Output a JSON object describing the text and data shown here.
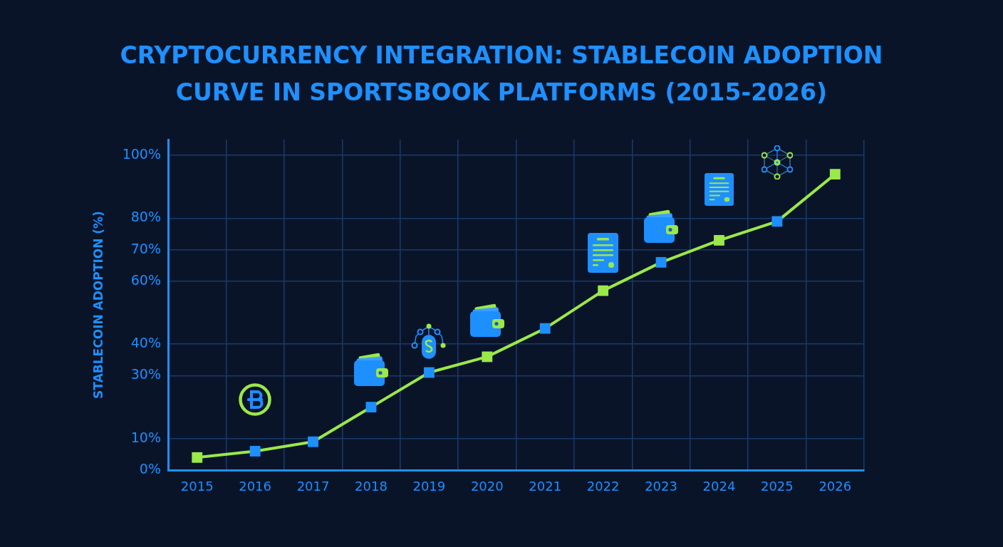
{
  "chart_data": {
    "type": "line",
    "title": "CRYPTOCURRENCY INTEGRATION: STABLECOIN ADOPTION CURVE IN SPORTSBOOK PLATFORMS (2015-2026)",
    "ylabel": "STABLECOIN ADOPTION (%)",
    "categories": [
      "2015",
      "2016",
      "2017",
      "2018",
      "2019",
      "2020",
      "2021",
      "2022",
      "2023",
      "2024",
      "2025",
      "2026"
    ],
    "series": [
      {
        "color": "#9be84a",
        "colors": [
          "#9be84a",
          "#1e8fff",
          "#1e8fff",
          "#1e8fff",
          "#1e8fff",
          "#9be84a",
          "#1e8fff",
          "#9be84a",
          "#1e8fff",
          "#9be84a",
          "#1e8fff",
          "#9be84a"
        ],
        "values": [
          4,
          6,
          9,
          20,
          31,
          36,
          45,
          57,
          66,
          73,
          79,
          94
        ]
      }
    ],
    "ylim": [
      0,
      105
    ],
    "yticks": [
      {
        "value": 0,
        "label": "0%"
      },
      {
        "value": 10,
        "label": "10%"
      },
      {
        "value": 30,
        "label": "30%"
      },
      {
        "value": 40,
        "label": "40%"
      },
      {
        "value": 60,
        "label": "60%"
      },
      {
        "value": 70,
        "label": "70%"
      },
      {
        "value": 80,
        "label": "80%"
      },
      {
        "value": 100,
        "label": "100%"
      }
    ],
    "grid": true,
    "marker": "square",
    "line_style": "solid"
  }
}
